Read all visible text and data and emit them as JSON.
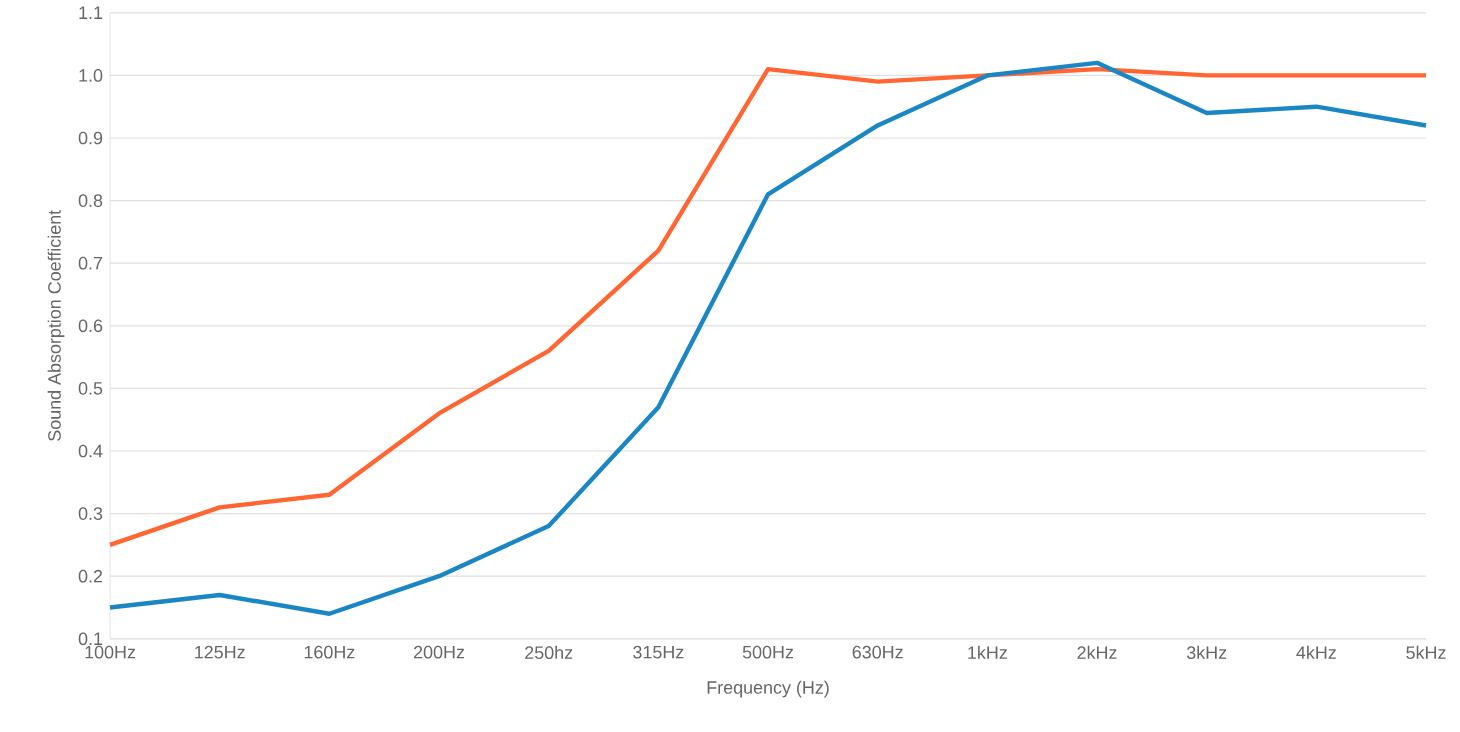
{
  "chart_data": {
    "type": "line",
    "xlabel": "Frequency (Hz)",
    "ylabel": "Sound Absorption Coefficient",
    "categories": [
      "100Hz",
      "125Hz",
      "160Hz",
      "200Hz",
      "250hz",
      "315Hz",
      "500Hz",
      "630Hz",
      "1kHz",
      "2kHz",
      "3kHz",
      "4kHz",
      "5kHz"
    ],
    "series": [
      {
        "color": "#ff6633",
        "values": [
          0.25,
          0.31,
          0.33,
          0.46,
          0.56,
          0.72,
          1.01,
          0.99,
          1.0,
          1.01,
          1.0,
          1.0,
          1.0
        ]
      },
      {
        "color": "#1a87c4",
        "values": [
          0.15,
          0.17,
          0.14,
          0.2,
          0.28,
          0.47,
          0.81,
          0.92,
          1.0,
          1.02,
          0.94,
          0.95,
          0.92
        ]
      }
    ],
    "ylim": [
      0.1,
      1.1
    ],
    "yticks": [
      {
        "value": 0.1,
        "label": "0.1"
      },
      {
        "value": 0.2,
        "label": "0.2"
      },
      {
        "value": 0.3,
        "label": "0.3"
      },
      {
        "value": 0.4,
        "label": "0.4"
      },
      {
        "value": 0.5,
        "label": "0.5"
      },
      {
        "value": 0.6,
        "label": "0.6"
      },
      {
        "value": 0.7,
        "label": "0.7"
      },
      {
        "value": 0.8,
        "label": "0.8"
      },
      {
        "value": 0.9,
        "label": "0.9"
      },
      {
        "value": 1.0,
        "label": "1.0"
      },
      {
        "value": 1.1,
        "label": "1.1"
      }
    ],
    "grid": "y",
    "legend": false,
    "marker": "none",
    "line_style": "solid"
  }
}
